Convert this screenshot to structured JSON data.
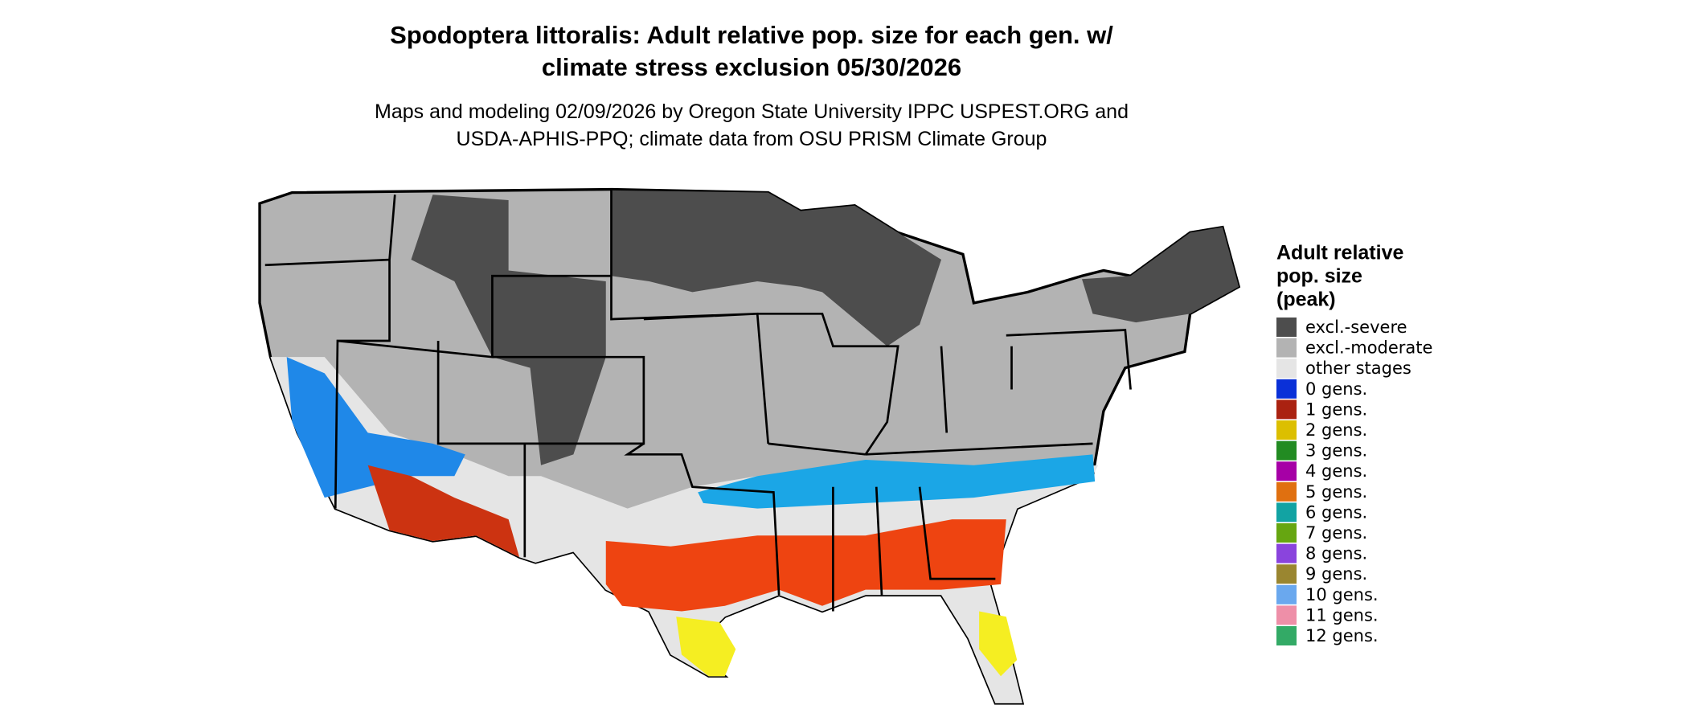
{
  "header": {
    "title": [
      "Spodoptera littoralis: Adult relative pop. size for each gen. w/",
      "climate stress exclusion 05/30/2026"
    ],
    "subtitle": [
      "Maps and modeling 02/09/2026 by Oregon State University IPPC USPEST.ORG and",
      "USDA-APHIS-PPQ; climate data from OSU PRISM Climate Group"
    ]
  },
  "legend": {
    "title": [
      "Adult relative",
      "pop. size",
      "(peak)"
    ],
    "items": [
      {
        "label": "excl.-severe",
        "color": "#4d4d4d"
      },
      {
        "label": "excl.-moderate",
        "color": "#b3b3b3"
      },
      {
        "label": "other stages",
        "color": "#e5e5e5"
      },
      {
        "label": "0 gens.",
        "color": "#0a30d8"
      },
      {
        "label": "1 gens.",
        "color": "#aa2211"
      },
      {
        "label": "2 gens.",
        "color": "#dcbf00"
      },
      {
        "label": "3 gens.",
        "color": "#228b22"
      },
      {
        "label": "4 gens.",
        "color": "#a600a6"
      },
      {
        "label": "5 gens.",
        "color": "#e07010"
      },
      {
        "label": "6 gens.",
        "color": "#12a3a3"
      },
      {
        "label": "7 gens.",
        "color": "#66a611"
      },
      {
        "label": "8 gens.",
        "color": "#8a44dd"
      },
      {
        "label": "9 gens.",
        "color": "#9a8630"
      },
      {
        "label": "10 gens.",
        "color": "#6aa8ee"
      },
      {
        "label": "11 gens.",
        "color": "#ee8fa8"
      },
      {
        "label": "12 gens.",
        "color": "#33aa66"
      }
    ]
  }
}
